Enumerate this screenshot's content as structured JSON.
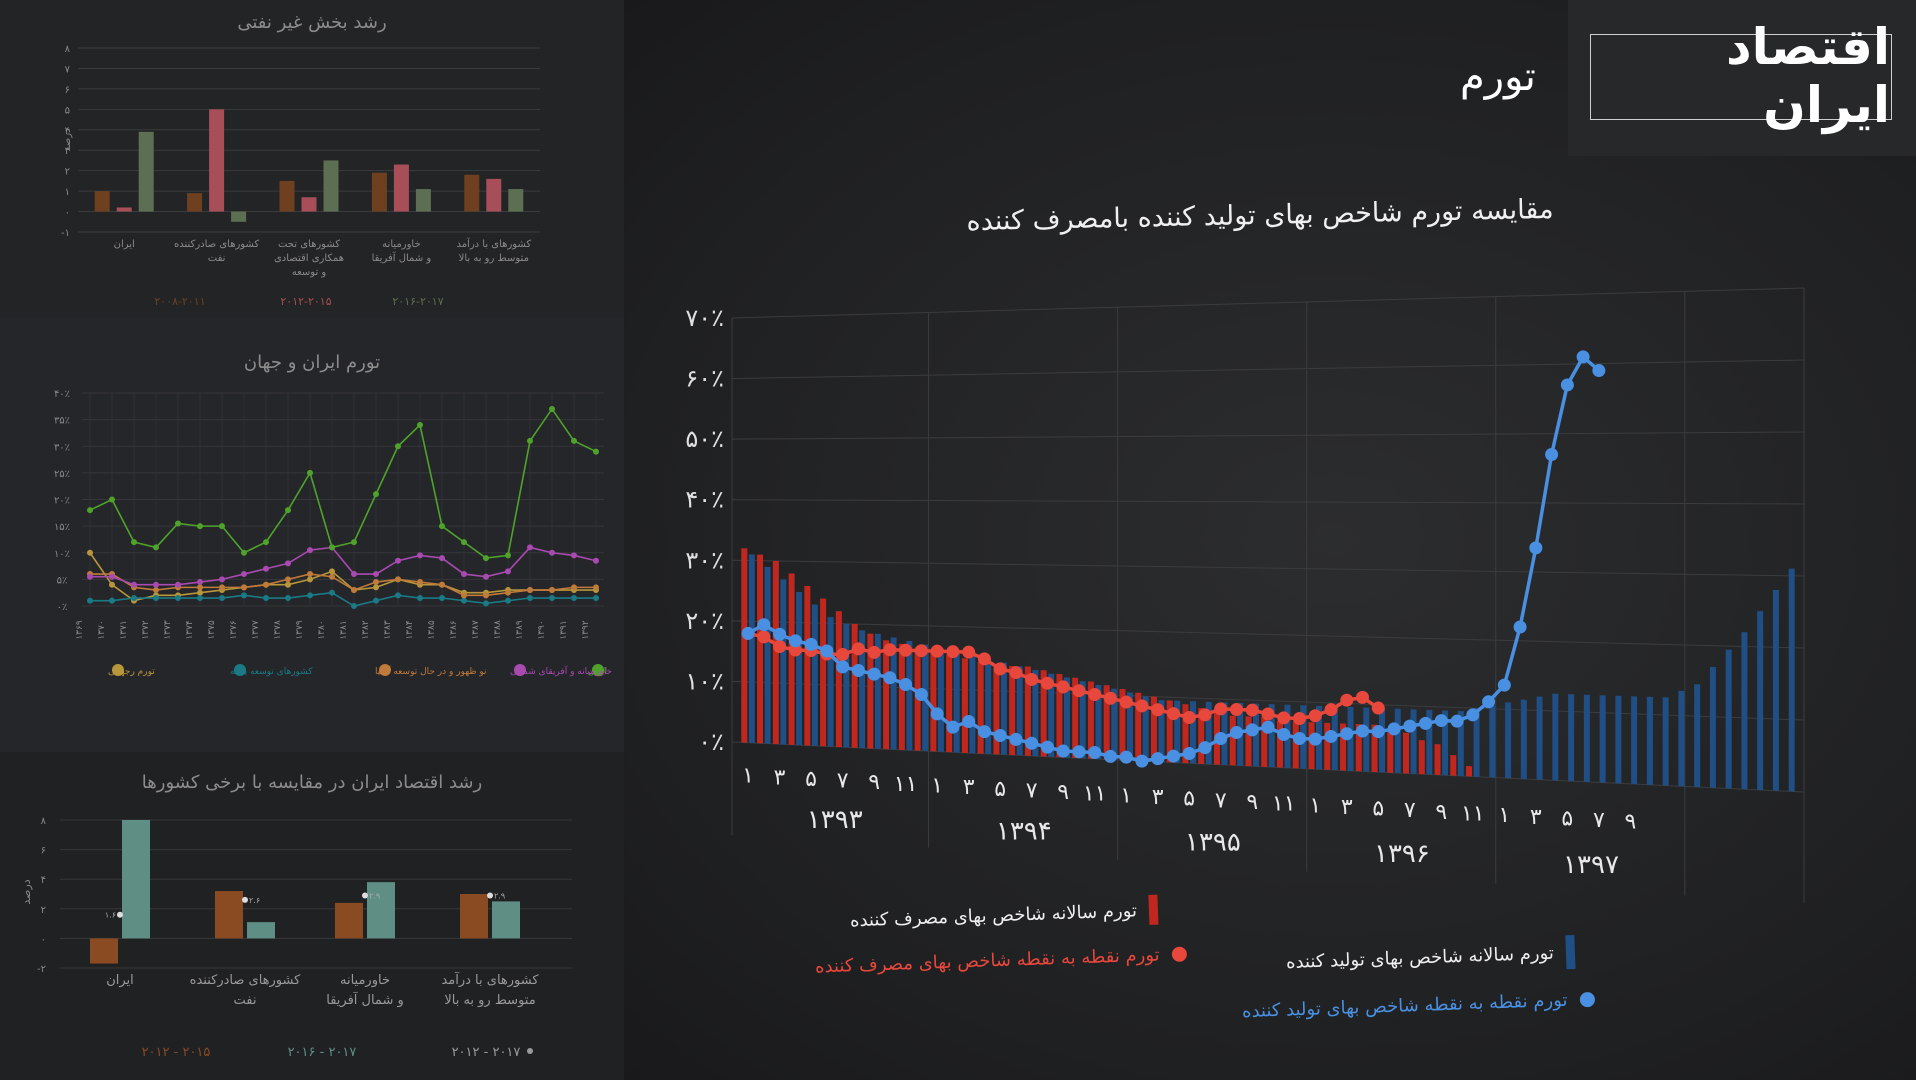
{
  "header": {
    "title": "اقتصاد ایران",
    "subtitle": "تورم"
  },
  "main_chart": {
    "title": "مقایسه تورم شاخص بهای تولید کننده بامصرف کننده"
  },
  "legend": {
    "cpi_annual": "تورم سالانه شاخص بهای مصرف کننده",
    "cpi_point": "تورم نقطه به نقطه شاخص بهای مصرف کننده",
    "ppi_annual": "تورم سالانه شاخص بهای تولید کننده",
    "ppi_point": "تورم نقطه به نقطه شاخص بهای تولید کننده"
  },
  "colors": {
    "cpi": "#c0281f",
    "cpi_point": "#e8473c",
    "ppi": "#1f4f85",
    "ppi_point": "#4a90e2",
    "g_iran": "#4fa32a",
    "g_mena": "#a94ab0",
    "g_emerging": "#c07a3a",
    "g_advanced": "#1a7a85",
    "g_world": "#b8963a",
    "s_y1": "#6e4020",
    "s_y2": "#a84e58",
    "s_y3": "#5d6f52",
    "b_y1": "#8a4a22",
    "b_y2": "#5f8f84"
  },
  "panel1": {
    "title": "رشد بخش غیر نفتی",
    "ylabel": "درصد",
    "yticks": [
      "۸",
      "۷",
      "۶",
      "۵",
      "۴",
      "۳",
      "۲",
      "۱",
      "۰",
      "-۱"
    ],
    "categories": [
      [
        "ایران"
      ],
      [
        "کشورهای صادرکننده",
        "نفت"
      ],
      [
        "کشورهای تحت",
        "همکاری اقتصادی",
        "و توسعه"
      ],
      [
        "خاورمیانه",
        "و شمال آفریقا"
      ],
      [
        "کشورهای با درآمد",
        "متوسط رو به بالا"
      ]
    ],
    "legend": [
      "۲۰۰۸-۲۰۱۱",
      "۲۰۱۲-۲۰۱۵",
      "۲۰۱۶-۲۰۱۷"
    ]
  },
  "panel2": {
    "title": "تورم ایران و جهان",
    "yticks": [
      "۴۰٪",
      "۳۵٪",
      "۳۰٪",
      "۲۵٪",
      "۲۰٪",
      "۱۵٪",
      "۱۰٪",
      "۵٪",
      "۰٪"
    ],
    "xticks": [
      "۱۳۶۹",
      "۱۳۷۰",
      "۱۳۷۱",
      "۱۳۷۲",
      "۱۳۷۳",
      "۱۳۷۴",
      "۱۳۷۵",
      "۱۳۷۶",
      "۱۳۷۷",
      "۱۳۷۸",
      "۱۳۷۹",
      "۱۳۸۰",
      "۱۳۸۱",
      "۱۳۸۲",
      "۱۳۸۳",
      "۱۳۸۴",
      "۱۳۸۵",
      "۱۳۸۶",
      "۱۳۸۷",
      "۱۳۸۸",
      "۱۳۸۹",
      "۱۳۹۰",
      "۱۳۹۱",
      "۱۳۹۲"
    ],
    "legend": [
      "ایران",
      "خاورمیانه و آفریقای شمالی",
      "نو ظهور و در حال توسعه آسیا",
      "کشورهای توسعه یافته",
      "تورم رجهانی"
    ]
  },
  "panel3": {
    "title": "رشد اقتصاد ایران در مقایسه با برخی کشورها",
    "ylabel": "درصد",
    "yticks": [
      "۸",
      "۶",
      "۴",
      "۲",
      "۰",
      "-۲"
    ],
    "categories": [
      [
        "ایران"
      ],
      [
        "کشورهای صادرکننده",
        "نفت"
      ],
      [
        "خاورمیانه",
        "و شمال آفریقا"
      ],
      [
        "کشورهای  با درآمد",
        "متوسط رو به بالا"
      ]
    ],
    "annotations": [
      "۱.۶",
      "۲.۶",
      "۲.۹",
      "۲.۹"
    ],
    "legend": [
      "۲۰۱۲ - ۲۰۱۵",
      "۲۰۱۶ - ۲۰۱۷",
      "۲۰۱۲ - ۲۰۱۷"
    ]
  },
  "chart_data": [
    {
      "type": "bar",
      "title": "رشد بخش غیر نفتی",
      "ylabel": "درصد",
      "ylim": [
        -1,
        8
      ],
      "categories": [
        "ایران",
        "کشورهای صادرکننده نفت",
        "کشورهای تحت همکاری اقتصادی و توسعه",
        "خاورمیانه و شمال آفریقا",
        "کشورهای با درآمد متوسط رو به بالا"
      ],
      "series": [
        {
          "name": "۲۰۰۸-۲۰۱۱",
          "values": [
            1.0,
            0.9,
            1.5,
            1.9,
            1.8
          ]
        },
        {
          "name": "۲۰۱۲-۲۰۱۵",
          "values": [
            0.2,
            5.0,
            0.7,
            2.3,
            1.6
          ]
        },
        {
          "name": "۲۰۱۶-۲۰۱۷",
          "values": [
            3.9,
            -0.5,
            2.5,
            1.1,
            1.1
          ]
        }
      ]
    },
    {
      "type": "line",
      "title": "تورم ایران و جهان",
      "ylim": [
        0,
        40
      ],
      "x": [
        "۱۳۶۹",
        "۱۳۷۰",
        "۱۳۷۱",
        "۱۳۷۲",
        "۱۳۷۳",
        "۱۳۷۴",
        "۱۳۷۵",
        "۱۳۷۶",
        "۱۳۷۷",
        "۱۳۷۸",
        "۱۳۷۹",
        "۱۳۸۰",
        "۱۳۸۱",
        "۱۳۸۲",
        "۱۳۸۳",
        "۱۳۸۴",
        "۱۳۸۵",
        "۱۳۸۶",
        "۱۳۸۷",
        "۱۳۸۸",
        "۱۳۸۹",
        "۱۳۹۰",
        "۱۳۹۱",
        "۱۳۹۲"
      ],
      "series": [
        {
          "name": "ایران",
          "values": [
            18,
            20,
            12,
            11,
            15.5,
            15,
            15,
            10,
            12,
            18,
            25,
            11,
            12,
            21,
            30,
            34,
            15,
            12,
            9,
            9.5,
            31,
            37,
            31,
            29
          ]
        },
        {
          "name": "خاورمیانه و آفریقای شمالی",
          "values": [
            5.5,
            5.5,
            4,
            4,
            4,
            4.5,
            5,
            6,
            7,
            8,
            10.5,
            11,
            6,
            6,
            8.5,
            9.5,
            9,
            6,
            5.5,
            6.5,
            11,
            10,
            9.5,
            8.5
          ]
        },
        {
          "name": "نو ظهور و در حال توسعه آسیا",
          "values": [
            6,
            6,
            3.5,
            3,
            3.5,
            3.5,
            3.5,
            3.5,
            4,
            5,
            6,
            5.5,
            3,
            4.5,
            5,
            4.5,
            4,
            2,
            2,
            2.5,
            3,
            3,
            3.5,
            3.5
          ]
        },
        {
          "name": "کشورهای توسعه یافته",
          "values": [
            1,
            1,
            1.5,
            1.5,
            1.5,
            1.5,
            1.5,
            2,
            1.5,
            1.5,
            2,
            2.5,
            0,
            1,
            2,
            1.5,
            1.5,
            1,
            0.5,
            1,
            1.5,
            1.5,
            1.5,
            1.5
          ]
        },
        {
          "name": "تورم رجهانی",
          "values": [
            10,
            4,
            1,
            2,
            2,
            2.5,
            3,
            3.5,
            4,
            4,
            5,
            6.5,
            3,
            3.5,
            5,
            4,
            4,
            2.5,
            2.5,
            3,
            3,
            3,
            3,
            3
          ]
        }
      ]
    },
    {
      "type": "bar",
      "title": "رشد اقتصاد ایران در مقایسه با برخی کشورها",
      "ylabel": "درصد",
      "ylim": [
        -2,
        8
      ],
      "categories": [
        "ایران",
        "کشورهای صادرکننده نفت",
        "خاورمیانه و شمال آفریقا",
        "کشورهای با درآمد متوسط رو به بالا"
      ],
      "series": [
        {
          "name": "۲۰۱۲ - ۲۰۱۵",
          "values": [
            -1.7,
            3.2,
            2.4,
            3.0
          ]
        },
        {
          "name": "۲۰۱۶ - ۲۰۱۷",
          "values": [
            8.0,
            1.1,
            3.8,
            2.5
          ]
        }
      ],
      "markers": {
        "name": "۲۰۱۲ - ۲۰۱۷",
        "values": [
          1.6,
          2.6,
          2.9,
          2.9
        ]
      }
    },
    {
      "type": "bar",
      "title": "مقایسه تورم شاخص بهای تولید کننده بامصرف کننده",
      "ylim": [
        0,
        70
      ],
      "yticks": [
        "۷۰٪",
        "۶۰٪",
        "۵۰٪",
        "۴۰٪",
        "۳۰٪",
        "۲۰٪",
        "۱۰٪",
        "۰٪"
      ],
      "month_ticks": [
        "۱",
        "۳",
        "۵",
        "۷",
        "۹",
        "۱۱"
      ],
      "month_ticks_1397": [
        "۱",
        "۳",
        "۵",
        "۷",
        "۹"
      ],
      "years": [
        "۱۳۹۳",
        "۱۳۹۴",
        "۱۳۹۵",
        "۱۳۹۶",
        "۱۳۹۷"
      ],
      "series": [
        {
          "name": "تورم سالانه شاخص بهای مصرف کننده",
          "values": [
            32,
            31,
            30,
            28,
            26,
            24,
            22,
            20,
            18.5,
            17.5,
            17,
            16.5,
            16,
            15.5,
            15,
            14.5,
            14,
            14,
            14,
            13.5,
            13,
            12.5,
            12,
            11.5,
            11,
            10.5,
            10,
            9.5,
            9,
            8.5,
            8,
            7.5,
            7.5,
            7.5,
            7,
            7,
            7,
            7,
            7,
            7,
            7,
            6.5,
            6,
            5,
            4.5,
            3,
            1.5,
            null,
            null,
            null,
            null,
            null,
            null,
            null,
            null,
            null,
            null,
            null,
            null,
            null,
            null,
            null,
            null,
            null,
            null,
            null,
            null
          ]
        },
        {
          "name": "تورم نقطه به نقطه شاخص بهای مصرف کننده",
          "values": [
            18,
            17.5,
            16,
            15.5,
            15.5,
            15,
            15,
            16,
            15.5,
            16,
            16,
            16,
            16,
            16,
            16,
            15,
            13.5,
            13,
            12,
            11.5,
            11,
            10.5,
            10,
            9.5,
            9,
            8.5,
            8,
            7.5,
            7,
            7.5,
            8.5,
            8.5,
            8.5,
            8,
            7.5,
            7.5,
            8,
            9,
            10.5,
            11,
            9.5,
            null,
            null,
            null,
            null,
            null,
            null,
            null,
            null,
            null,
            null,
            null,
            null,
            null,
            null,
            null,
            null,
            null,
            null,
            null,
            null,
            null,
            null,
            null,
            null,
            null,
            null
          ]
        },
        {
          "name": "تورم سالانه شاخص بهای تولید کننده",
          "values": [
            31,
            29,
            27,
            25,
            23,
            21,
            20,
            19,
            18.5,
            18,
            17.5,
            17,
            16.5,
            16,
            15.5,
            15,
            14.5,
            14,
            13.5,
            13,
            12.5,
            12,
            11.5,
            11,
            10.5,
            10,
            9.5,
            9.5,
            9.5,
            9.5,
            9.5,
            9.5,
            9.5,
            9.5,
            9.5,
            9.5,
            9.5,
            9.5,
            9.5,
            9.5,
            9.5,
            9.5,
            9.5,
            9.5,
            9.5,
            9.5,
            10,
            10.5,
            11,
            11.5,
            12,
            12.5,
            12.5,
            12.5,
            12.5,
            12.5,
            12.5,
            12.5,
            12.5,
            13.5,
            14.5,
            17,
            19.5,
            22,
            25,
            28,
            31
          ]
        },
        {
          "name": "تورم نقطه به نقطه شاخص بهای تولید کننده",
          "values": [
            18,
            19.5,
            18,
            17,
            16.5,
            15.5,
            13,
            12.5,
            12,
            11.5,
            10.5,
            9,
            6,
            4,
            5,
            3.5,
            3,
            2.5,
            2,
            1.5,
            1,
            1,
            1,
            0.5,
            0.5,
            0,
            0.5,
            1,
            1.5,
            2.5,
            4,
            5,
            5.5,
            6,
            5,
            4.5,
            4.5,
            5,
            5.5,
            6,
            6,
            6.5,
            7,
            7.5,
            8,
            8,
            9,
            11,
            13.5,
            22,
            33.5,
            47,
            57,
            61,
            59
          ]
        }
      ]
    }
  ]
}
